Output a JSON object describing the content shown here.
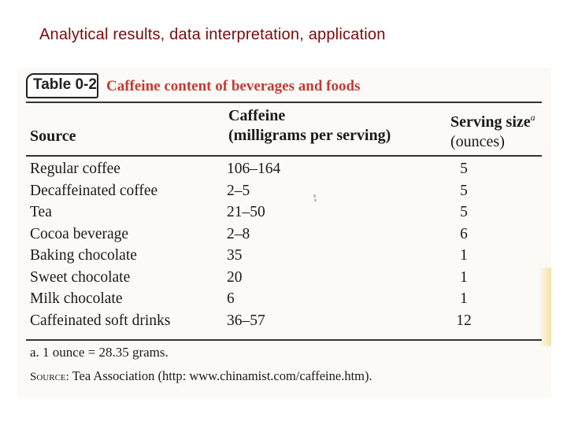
{
  "slide": {
    "title": "Analytical results, data interpretation, application"
  },
  "table": {
    "tag": "Table 0-2",
    "caption": "Caffeine content of beverages and foods",
    "headers": {
      "source": "Source",
      "caffeine_line1": "Caffeine",
      "caffeine_line2": "(milligrams per serving)",
      "serving_line1": "Serving size",
      "serving_sup": "a",
      "serving_line2": "(ounces)"
    },
    "rows": [
      {
        "source": "Regular coffee",
        "caffeine": "106–164",
        "serving": "5"
      },
      {
        "source": "Decaffeinated coffee",
        "caffeine": "2–5",
        "serving": "5"
      },
      {
        "source": "Tea",
        "caffeine": "21–50",
        "serving": "5"
      },
      {
        "source": "Cocoa beverage",
        "caffeine": "2–8",
        "serving": "6"
      },
      {
        "source": "Baking chocolate",
        "caffeine": "35",
        "serving": "1"
      },
      {
        "source": "Sweet chocolate",
        "caffeine": "20",
        "serving": "1"
      },
      {
        "source": "Milk chocolate",
        "caffeine": "6",
        "serving": "1"
      },
      {
        "source": "Caffeinated soft drinks",
        "caffeine": "36–57",
        "serving": "12"
      }
    ],
    "footnote": "a. 1 ounce = 28.35 grams.",
    "source_label": "Source:",
    "source_text": " Tea Association (http: www.chinamist.com/caffeine.htm)."
  },
  "colors": {
    "title": "#7a0a0a",
    "caption": "#c23a35",
    "paper": "#fbfaf6"
  }
}
